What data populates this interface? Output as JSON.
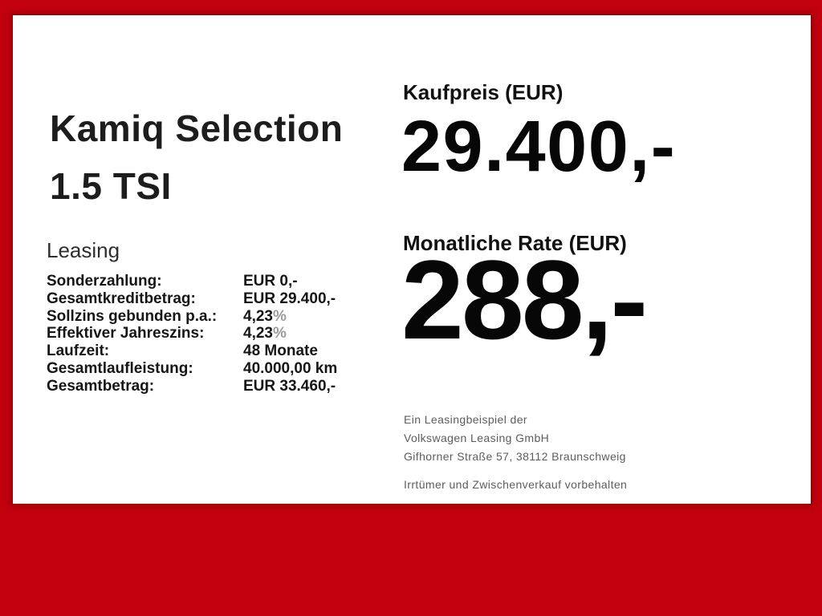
{
  "page": {
    "background_color": "#c2000e",
    "card_color": "#ffffff",
    "percent_suffix_color": "#9a9a9a"
  },
  "vehicle": {
    "title_line1": "Kamiq Selection",
    "title_line2": "1.5 TSI"
  },
  "leasing": {
    "heading": "Leasing",
    "rows": [
      {
        "label": "Sonderzahlung:",
        "value": "EUR 0,-"
      },
      {
        "label": "Gesamtkreditbetrag:",
        "value": "EUR 29.400,-"
      },
      {
        "label": "Sollzins gebunden p.a.:",
        "value": "4,23",
        "suffix": "%"
      },
      {
        "label": "Effektiver Jahreszins:",
        "value": "4,23",
        "suffix": "%"
      },
      {
        "label": "Laufzeit:",
        "value": "48 Monate"
      },
      {
        "label": "Gesamtlaufleistung:",
        "value": "40.000,00 km"
      },
      {
        "label": "Gesamtbetrag:",
        "value": "EUR 33.460,-"
      }
    ]
  },
  "pricing": {
    "purchase": {
      "label": "Kaufpreis (EUR)",
      "value": "29.400,-"
    },
    "monthly": {
      "label": "Monatliche Rate (EUR)",
      "value": "288,-"
    }
  },
  "footer": {
    "lines": [
      "Ein Leasingbeispiel der",
      "Volkswagen Leasing GmbH",
      "Gifhorner Straße 57, 38112 Braunschweig"
    ],
    "disclaimer": "Irrtümer und Zwischenverkauf vorbehalten"
  }
}
